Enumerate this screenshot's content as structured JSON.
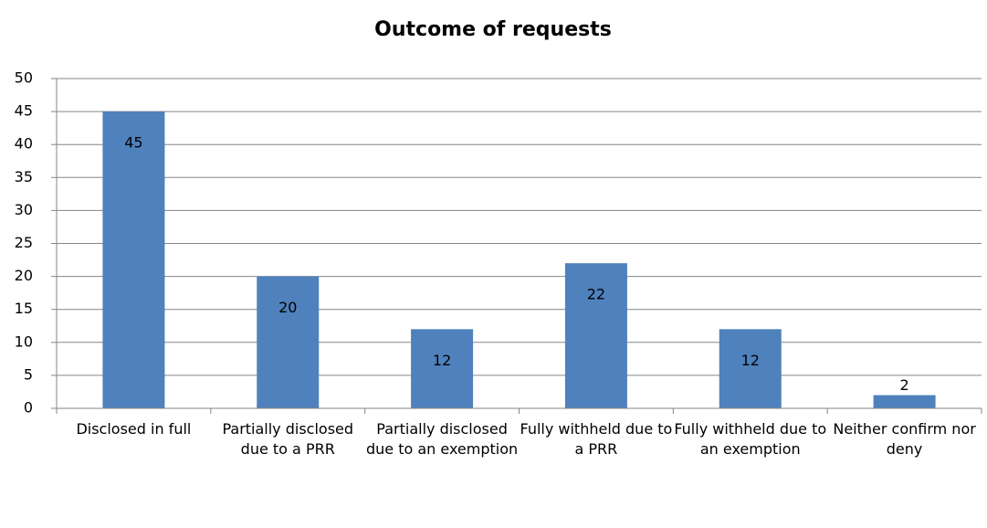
{
  "chart_data": {
    "type": "bar",
    "title": "Outcome of requests",
    "categories": [
      "Disclosed in full",
      "Partially disclosed due to a PRR",
      "Partially disclosed due to an exemption",
      "Fully withheld due to a PRR",
      "Fully withheld due to an exemption",
      "Neither confirm nor deny"
    ],
    "values": [
      45,
      20,
      12,
      22,
      12,
      2
    ],
    "color": "#4f81bd",
    "ylim": [
      0,
      50
    ],
    "yticks": [
      0,
      5,
      10,
      15,
      20,
      25,
      30,
      35,
      40,
      45,
      50
    ],
    "grid": true
  }
}
